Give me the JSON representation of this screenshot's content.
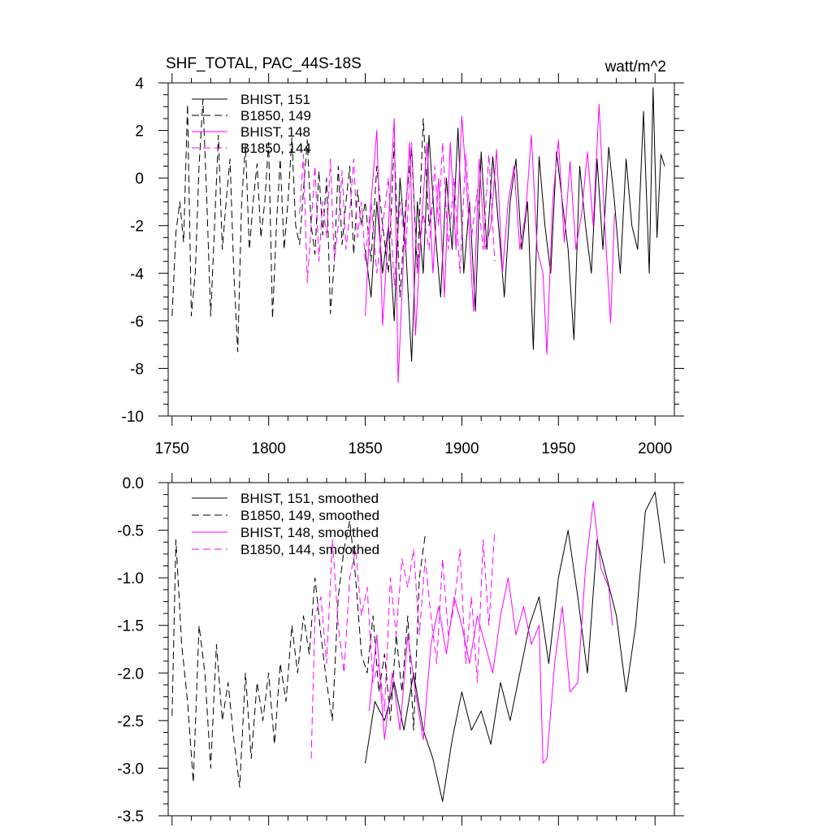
{
  "chart_data": [
    {
      "type": "line",
      "title": "SHF_TOTAL, PAC_44S-18S",
      "units": "watt/m^2",
      "xlim": [
        1748,
        2010
      ],
      "ylim": [
        -10,
        4
      ],
      "x_ticks": [
        1750,
        1800,
        1850,
        1900,
        1950,
        2000
      ],
      "y_ticks": [
        -10,
        -8,
        -6,
        -4,
        -2,
        0,
        2,
        4
      ],
      "y_tick_labels": [
        "-10",
        "-8",
        "-6",
        "-4",
        "-2",
        "0",
        "2",
        "4"
      ],
      "x_tick_labels": [
        "1750",
        "1800",
        "1850",
        "1900",
        "1950",
        "2000"
      ],
      "legend_position": "top-left",
      "series": [
        {
          "name": "BHIST, 151",
          "color": "#000000",
          "dash": "solid",
          "x": [
            1850,
            1853,
            1856,
            1859,
            1862,
            1865,
            1868,
            1871,
            1874,
            1877,
            1880,
            1883,
            1886,
            1889,
            1892,
            1895,
            1898,
            1901,
            1904,
            1907,
            1910,
            1913,
            1916,
            1919,
            1922,
            1925,
            1928,
            1931,
            1934,
            1937,
            1940,
            1943,
            1946,
            1949,
            1952,
            1955,
            1958,
            1961,
            1964,
            1967,
            1970,
            1973,
            1976,
            1979,
            1982,
            1985,
            1988,
            1991,
            1994,
            1997,
            1999,
            2001,
            2003,
            2005
          ],
          "y": [
            -3,
            -5,
            -1,
            -4,
            -2,
            -6,
            0,
            -3,
            -7.7,
            -1,
            -4,
            1.8,
            -2,
            -5,
            0,
            -3,
            2.1,
            -4,
            -1,
            -5.6,
            1.1,
            -3,
            0.9,
            -2,
            -5,
            -1,
            0.8,
            -3,
            -1,
            -7.2,
            0.9,
            -2,
            -4,
            1.1,
            -1,
            -3,
            -6.8,
            0.5,
            -2,
            -4,
            0.8,
            -3,
            1.3,
            -1,
            -4,
            0.8,
            -2,
            -3,
            2.8,
            -4,
            3.8,
            -2.5,
            1.0,
            0.5
          ]
        },
        {
          "name": "B1850, 149",
          "color": "#000000",
          "dash": "dashed",
          "x": [
            1750,
            1752,
            1754,
            1756,
            1758,
            1760,
            1762,
            1764,
            1766,
            1768,
            1770,
            1772,
            1774,
            1776,
            1778,
            1780,
            1782,
            1784,
            1786,
            1788,
            1790,
            1792,
            1794,
            1796,
            1798,
            1800,
            1802,
            1804,
            1806,
            1808,
            1810,
            1812,
            1814,
            1816,
            1818,
            1820,
            1822,
            1824,
            1826,
            1828,
            1830,
            1832,
            1834,
            1836,
            1838,
            1840,
            1842,
            1844,
            1846,
            1848,
            1850,
            1853,
            1856,
            1859,
            1862,
            1865,
            1868,
            1871,
            1874,
            1877,
            1880,
            1883,
            1885
          ],
          "y": [
            -5.8,
            -2.3,
            -1,
            -2.7,
            3.1,
            -5.8,
            -4,
            0.5,
            3.3,
            -1,
            -5.8,
            -2,
            1.8,
            -3,
            -1,
            0.8,
            -4,
            -7.3,
            -1,
            1.4,
            -3,
            -1,
            0.6,
            -2.5,
            -1,
            1.5,
            -5.9,
            -2,
            0.8,
            -3,
            -1,
            1.7,
            -2,
            -2.8,
            -0.5,
            1.6,
            -2,
            -3.2,
            0.3,
            -2.4,
            0,
            -5.7,
            -3.5,
            0.5,
            -2.8,
            -1,
            0.5,
            -3.2,
            -0.5,
            -2,
            -1,
            -3.5,
            0.5,
            -2,
            -4,
            1.5,
            -5,
            -1,
            1.2,
            -4,
            2.5,
            -2,
            -1
          ]
        },
        {
          "name": "BHIST, 148",
          "color": "#ff00ff",
          "dash": "solid",
          "x": [
            1850,
            1853,
            1856,
            1859,
            1862,
            1865,
            1867,
            1870,
            1873,
            1876,
            1879,
            1882,
            1885,
            1888,
            1891,
            1894,
            1897,
            1900,
            1903,
            1906,
            1909,
            1912,
            1915,
            1918,
            1921,
            1924,
            1927,
            1930,
            1933,
            1936,
            1939,
            1942,
            1944,
            1947,
            1950,
            1953,
            1956,
            1959,
            1962,
            1965,
            1968,
            1971,
            1974,
            1977,
            1979
          ],
          "y": [
            -5.8,
            -1,
            2,
            -6.2,
            -2,
            2.5,
            -8.6,
            -3,
            1.5,
            -6.6,
            -2,
            1.5,
            -4,
            0,
            -5,
            1.5,
            -3,
            2.6,
            -1,
            -5.6,
            0.8,
            -3,
            -2,
            1.2,
            -4,
            -1,
            0.5,
            -3,
            -1.5,
            1.8,
            -3,
            -4,
            -7.4,
            -1,
            1.6,
            -2.7,
            0.7,
            -3,
            -1.5,
            1.1,
            -2,
            3.1,
            -2,
            -6.1,
            -1.5
          ]
        },
        {
          "name": "B1850, 144",
          "color": "#ff00ff",
          "dash": "dashed",
          "x": [
            1816,
            1818,
            1820,
            1822,
            1824,
            1826,
            1828,
            1830,
            1832,
            1834,
            1836,
            1838,
            1840,
            1842,
            1844,
            1846,
            1848,
            1850,
            1853,
            1856,
            1859,
            1862,
            1865,
            1868,
            1871,
            1874,
            1877,
            1880,
            1883,
            1886,
            1888,
            1890,
            1893,
            1896,
            1899,
            1902,
            1905,
            1908,
            1911,
            1914,
            1917
          ],
          "y": [
            -1.5,
            1,
            -4.4,
            -2,
            0.5,
            -3.5,
            -1,
            -2.5,
            0.8,
            -3.5,
            -2,
            0.3,
            -3,
            -1.5,
            0.8,
            -2.5,
            -1,
            -3.5,
            -1,
            -4,
            -2,
            0,
            -4.5,
            -1,
            -3,
            1.5,
            -4,
            -1.5,
            -3,
            0.5,
            -2,
            1.5,
            -3,
            0,
            -4,
            1,
            -2.5,
            -0.5,
            -3,
            1,
            -3.5
          ]
        }
      ]
    },
    {
      "type": "line",
      "title": "",
      "xlim": [
        1748,
        2010
      ],
      "ylim": [
        -3.5,
        0
      ],
      "x_ticks": [
        1750,
        1800,
        1850,
        1900,
        1950,
        2000
      ],
      "y_ticks": [
        -3.5,
        -3.0,
        -2.5,
        -2.0,
        -1.5,
        -1.0,
        -0.5,
        0.0
      ],
      "y_tick_labels": [
        "-3.5",
        "-3.0",
        "-2.5",
        "-2.0",
        "-1.5",
        "-1.0",
        "-0.5",
        "0.0"
      ],
      "legend_position": "top-left",
      "series": [
        {
          "name": "BHIST, 151, smoothed",
          "color": "#000000",
          "dash": "solid",
          "x": [
            1850,
            1855,
            1860,
            1865,
            1870,
            1875,
            1880,
            1885,
            1890,
            1895,
            1900,
            1905,
            1910,
            1915,
            1920,
            1925,
            1930,
            1935,
            1940,
            1945,
            1950,
            1955,
            1960,
            1965,
            1970,
            1975,
            1980,
            1985,
            1990,
            1995,
            2000,
            2005
          ],
          "y": [
            -2.95,
            -2.3,
            -2.5,
            -2.1,
            -2.6,
            -2.0,
            -2.6,
            -2.9,
            -3.35,
            -2.7,
            -2.2,
            -2.6,
            -2.4,
            -2.75,
            -2.1,
            -2.5,
            -2.0,
            -1.5,
            -1.2,
            -1.9,
            -1.0,
            -0.5,
            -1.2,
            -2.0,
            -0.6,
            -1.0,
            -1.4,
            -2.2,
            -1.5,
            -0.3,
            -0.1,
            -0.85
          ]
        },
        {
          "name": "B1850, 149, smoothed",
          "color": "#000000",
          "dash": "dashed",
          "x": [
            1750,
            1752,
            1755,
            1758,
            1761,
            1764,
            1767,
            1770,
            1773,
            1776,
            1779,
            1782,
            1785,
            1788,
            1791,
            1794,
            1797,
            1800,
            1803,
            1806,
            1809,
            1812,
            1815,
            1818,
            1821,
            1824,
            1827,
            1830,
            1833,
            1836,
            1839,
            1842,
            1845,
            1848,
            1851,
            1854,
            1857,
            1860,
            1863,
            1866,
            1869,
            1872,
            1875,
            1878,
            1881
          ],
          "y": [
            -2.45,
            -0.6,
            -1.7,
            -2.3,
            -3.15,
            -1.5,
            -2.0,
            -3.0,
            -1.7,
            -2.5,
            -2.1,
            -2.7,
            -3.2,
            -2.0,
            -2.9,
            -2.1,
            -2.5,
            -2.0,
            -2.75,
            -1.9,
            -2.3,
            -1.5,
            -2.0,
            -1.4,
            -1.8,
            -1.0,
            -1.6,
            -2.1,
            -2.5,
            -1.2,
            -0.7,
            -0.4,
            -1.0,
            -1.8,
            -2.0,
            -1.4,
            -2.2,
            -1.8,
            -2.5,
            -1.6,
            -2.2,
            -1.4,
            -2.6,
            -1.0,
            -0.55
          ]
        },
        {
          "name": "BHIST, 148, smoothed",
          "color": "#ff00ff",
          "dash": "solid",
          "x": [
            1852,
            1856,
            1860,
            1864,
            1868,
            1872,
            1876,
            1880,
            1884,
            1888,
            1892,
            1896,
            1900,
            1904,
            1908,
            1912,
            1916,
            1920,
            1924,
            1928,
            1932,
            1936,
            1940,
            1942,
            1944,
            1948,
            1952,
            1956,
            1960,
            1964,
            1968,
            1972,
            1976,
            1978
          ],
          "y": [
            -2.4,
            -1.6,
            -2.7,
            -2.0,
            -2.6,
            -1.6,
            -2.2,
            -2.7,
            -1.7,
            -1.3,
            -1.8,
            -1.2,
            -1.5,
            -1.9,
            -1.4,
            -1.7,
            -2.0,
            -1.4,
            -1.0,
            -1.6,
            -1.3,
            -1.7,
            -1.5,
            -2.95,
            -2.9,
            -1.9,
            -1.3,
            -2.2,
            -2.1,
            -0.9,
            -0.2,
            -0.9,
            -1.1,
            -1.5
          ]
        },
        {
          "name": "B1850, 144, smoothed",
          "color": "#ff00ff",
          "dash": "dashed",
          "x": [
            1822,
            1824,
            1827,
            1830,
            1833,
            1836,
            1839,
            1842,
            1845,
            1848,
            1851,
            1854,
            1857,
            1860,
            1863,
            1866,
            1869,
            1872,
            1875,
            1878,
            1881,
            1884,
            1887,
            1890,
            1893,
            1896,
            1899,
            1902,
            1905,
            1908,
            1911,
            1914,
            1917
          ],
          "y": [
            -2.9,
            -1.4,
            -1.2,
            -1.9,
            -0.6,
            -1.5,
            -2.0,
            -1.0,
            -0.7,
            -1.4,
            -1.1,
            -2.1,
            -1.9,
            -2.4,
            -1.0,
            -1.6,
            -0.8,
            -1.1,
            -0.7,
            -1.6,
            -0.8,
            -1.4,
            -1.9,
            -0.8,
            -1.6,
            -1.3,
            -0.7,
            -1.9,
            -1.2,
            -2.1,
            -0.6,
            -1.5,
            -0.5
          ]
        }
      ]
    }
  ]
}
